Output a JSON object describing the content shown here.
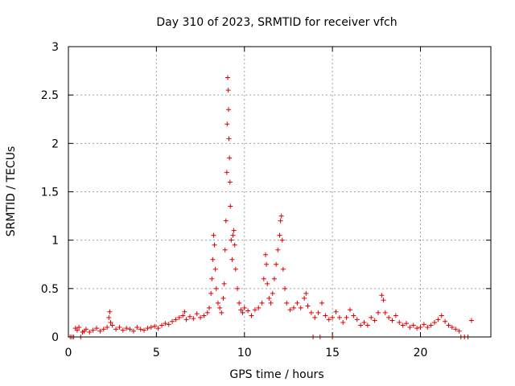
{
  "chart_data": {
    "type": "scatter",
    "title": "Day 310 of 2023, SRMTID for receiver vfch",
    "xlabel": "GPS time / hours",
    "ylabel": "SRMTID / TECUs",
    "xlim": [
      0,
      24
    ],
    "ylim": [
      0,
      3
    ],
    "x_ticks": [
      0,
      5,
      10,
      15,
      20
    ],
    "x_tick_labels": [
      "0",
      "5",
      "10",
      "15",
      "20"
    ],
    "y_ticks": [
      0,
      0.5,
      1,
      1.5,
      2,
      2.5,
      3
    ],
    "y_tick_labels": [
      "0",
      "0.5",
      "1",
      "1.5",
      "2",
      "2.5",
      "3"
    ],
    "grid": true,
    "marker": "+",
    "series_color": "#e00000",
    "series": [
      {
        "name": "SRMTID",
        "points": [
          [
            0.1,
            0.0
          ],
          [
            0.2,
            0.0
          ],
          [
            0.3,
            0.0
          ],
          [
            0.4,
            0.09
          ],
          [
            0.5,
            0.07
          ],
          [
            0.6,
            0.1
          ],
          [
            0.7,
            0.0
          ],
          [
            0.8,
            0.05
          ],
          [
            0.9,
            0.06
          ],
          [
            1.0,
            0.08
          ],
          [
            1.2,
            0.05
          ],
          [
            1.4,
            0.07
          ],
          [
            1.6,
            0.09
          ],
          [
            1.8,
            0.06
          ],
          [
            2.0,
            0.08
          ],
          [
            2.2,
            0.1
          ],
          [
            2.3,
            0.2
          ],
          [
            2.35,
            0.26
          ],
          [
            2.4,
            0.15
          ],
          [
            2.5,
            0.12
          ],
          [
            2.7,
            0.08
          ],
          [
            2.9,
            0.1
          ],
          [
            3.1,
            0.07
          ],
          [
            3.3,
            0.09
          ],
          [
            3.5,
            0.08
          ],
          [
            3.7,
            0.06
          ],
          [
            3.9,
            0.1
          ],
          [
            4.1,
            0.08
          ],
          [
            4.3,
            0.07
          ],
          [
            4.5,
            0.09
          ],
          [
            4.7,
            0.1
          ],
          [
            4.9,
            0.11
          ],
          [
            5.1,
            0.09
          ],
          [
            5.3,
            0.12
          ],
          [
            5.5,
            0.14
          ],
          [
            5.7,
            0.13
          ],
          [
            5.9,
            0.16
          ],
          [
            6.1,
            0.18
          ],
          [
            6.3,
            0.2
          ],
          [
            6.5,
            0.22
          ],
          [
            6.6,
            0.26
          ],
          [
            6.7,
            0.18
          ],
          [
            6.9,
            0.21
          ],
          [
            7.1,
            0.19
          ],
          [
            7.3,
            0.24
          ],
          [
            7.5,
            0.2
          ],
          [
            7.7,
            0.22
          ],
          [
            7.9,
            0.25
          ],
          [
            8.0,
            0.3
          ],
          [
            8.1,
            0.45
          ],
          [
            8.15,
            0.6
          ],
          [
            8.2,
            0.8
          ],
          [
            8.25,
            1.05
          ],
          [
            8.3,
            0.95
          ],
          [
            8.35,
            0.7
          ],
          [
            8.4,
            0.5
          ],
          [
            8.5,
            0.35
          ],
          [
            8.6,
            0.3
          ],
          [
            8.7,
            0.25
          ],
          [
            8.8,
            0.4
          ],
          [
            8.85,
            0.55
          ],
          [
            8.9,
            0.9
          ],
          [
            8.95,
            1.2
          ],
          [
            9.0,
            1.7
          ],
          [
            9.02,
            2.2
          ],
          [
            9.05,
            2.68
          ],
          [
            9.08,
            2.55
          ],
          [
            9.1,
            2.35
          ],
          [
            9.12,
            2.05
          ],
          [
            9.15,
            1.85
          ],
          [
            9.18,
            1.6
          ],
          [
            9.2,
            1.35
          ],
          [
            9.25,
            1.0
          ],
          [
            9.3,
            0.8
          ],
          [
            9.35,
            1.05
          ],
          [
            9.4,
            1.1
          ],
          [
            9.45,
            0.95
          ],
          [
            9.5,
            0.7
          ],
          [
            9.6,
            0.5
          ],
          [
            9.7,
            0.35
          ],
          [
            9.8,
            0.28
          ],
          [
            9.9,
            0.25
          ],
          [
            10.0,
            0.3
          ],
          [
            10.2,
            0.27
          ],
          [
            10.4,
            0.22
          ],
          [
            10.6,
            0.28
          ],
          [
            10.8,
            0.3
          ],
          [
            11.0,
            0.35
          ],
          [
            11.1,
            0.6
          ],
          [
            11.2,
            0.85
          ],
          [
            11.25,
            0.75
          ],
          [
            11.3,
            0.55
          ],
          [
            11.4,
            0.4
          ],
          [
            11.5,
            0.35
          ],
          [
            11.6,
            0.45
          ],
          [
            11.7,
            0.6
          ],
          [
            11.8,
            0.75
          ],
          [
            11.9,
            0.9
          ],
          [
            12.0,
            1.05
          ],
          [
            12.05,
            1.2
          ],
          [
            12.1,
            1.25
          ],
          [
            12.15,
            1.0
          ],
          [
            12.2,
            0.7
          ],
          [
            12.3,
            0.5
          ],
          [
            12.4,
            0.35
          ],
          [
            12.6,
            0.28
          ],
          [
            12.8,
            0.3
          ],
          [
            13.0,
            0.35
          ],
          [
            13.2,
            0.3
          ],
          [
            13.4,
            0.4
          ],
          [
            13.5,
            0.45
          ],
          [
            13.6,
            0.32
          ],
          [
            13.8,
            0.25
          ],
          [
            14.0,
            0.2
          ],
          [
            14.2,
            0.25
          ],
          [
            14.4,
            0.35
          ],
          [
            14.6,
            0.22
          ],
          [
            14.8,
            0.18
          ],
          [
            15.0,
            0.2
          ],
          [
            15.2,
            0.26
          ],
          [
            15.4,
            0.2
          ],
          [
            15.6,
            0.15
          ],
          [
            15.8,
            0.2
          ],
          [
            16.0,
            0.28
          ],
          [
            16.2,
            0.22
          ],
          [
            16.4,
            0.18
          ],
          [
            16.6,
            0.12
          ],
          [
            16.8,
            0.15
          ],
          [
            17.0,
            0.12
          ],
          [
            17.2,
            0.2
          ],
          [
            17.4,
            0.17
          ],
          [
            17.6,
            0.25
          ],
          [
            17.8,
            0.43
          ],
          [
            17.9,
            0.38
          ],
          [
            18.0,
            0.25
          ],
          [
            18.2,
            0.2
          ],
          [
            18.4,
            0.17
          ],
          [
            18.6,
            0.22
          ],
          [
            18.8,
            0.15
          ],
          [
            19.0,
            0.12
          ],
          [
            19.2,
            0.14
          ],
          [
            19.4,
            0.1
          ],
          [
            19.6,
            0.12
          ],
          [
            19.8,
            0.09
          ],
          [
            20.0,
            0.1
          ],
          [
            20.2,
            0.13
          ],
          [
            20.4,
            0.1
          ],
          [
            20.6,
            0.12
          ],
          [
            20.8,
            0.15
          ],
          [
            21.0,
            0.18
          ],
          [
            21.2,
            0.22
          ],
          [
            21.4,
            0.16
          ],
          [
            21.6,
            0.12
          ],
          [
            21.8,
            0.1
          ],
          [
            22.0,
            0.08
          ],
          [
            22.2,
            0.06
          ],
          [
            22.3,
            0.0
          ],
          [
            22.5,
            0.0
          ],
          [
            22.7,
            0.0
          ],
          [
            22.9,
            0.17
          ],
          [
            13.9,
            0.0
          ],
          [
            14.3,
            0.0
          ],
          [
            15.0,
            0.0
          ]
        ]
      }
    ]
  }
}
